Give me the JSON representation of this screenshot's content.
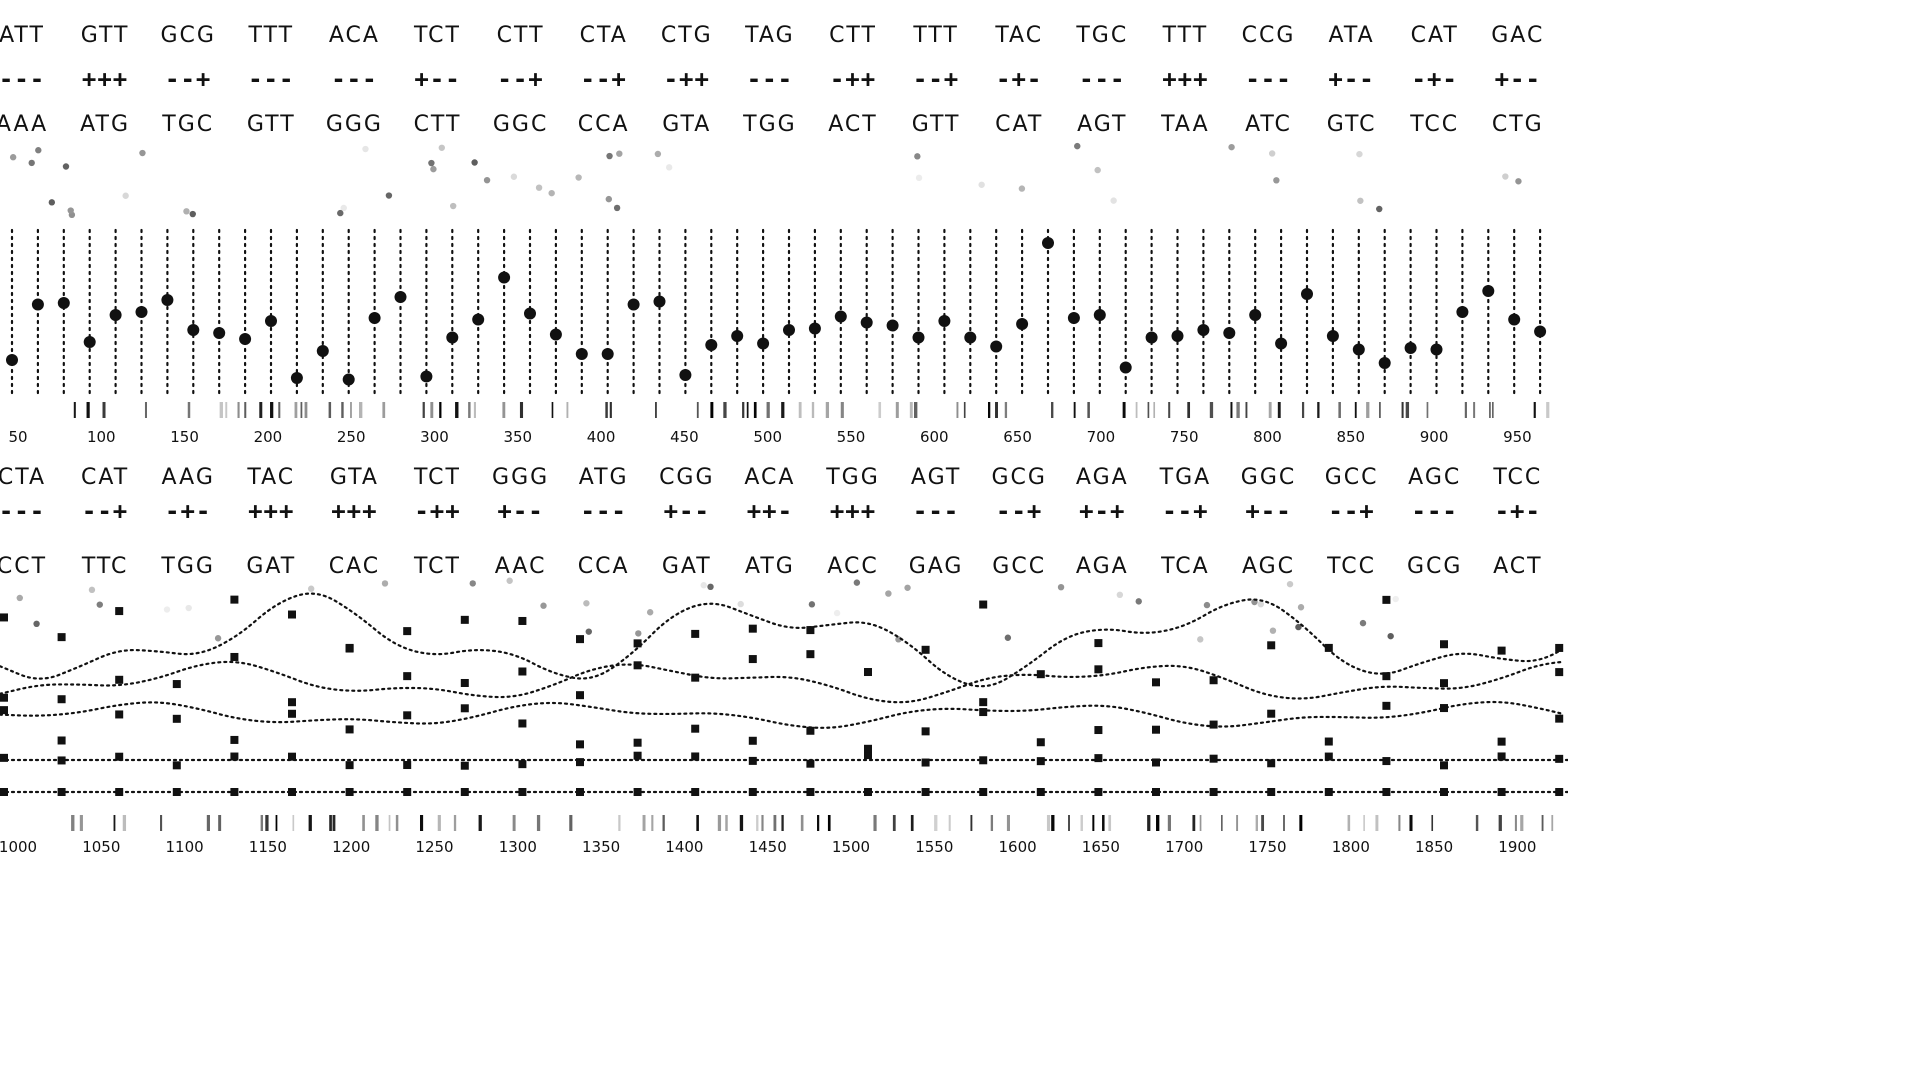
{
  "panel1": {
    "codons_top": [
      "ATT",
      "GTT",
      "GCG",
      "TTT",
      "ACA",
      "TCT",
      "CTT",
      "CTA",
      "CTG",
      "TAG",
      "CTT",
      "TTT",
      "TAC",
      "TGC",
      "TTT",
      "CCG",
      "ATA",
      "CAT",
      "GAC"
    ],
    "signs": [
      "---",
      "+++",
      "--+",
      "---",
      "---",
      "+--",
      "--+",
      "--+",
      "-++",
      "---",
      "-++",
      "--+",
      "-+-",
      "---",
      "+++",
      "---",
      "+--",
      "-+-",
      "+--"
    ],
    "codons_bottom": [
      "AAA",
      "ATG",
      "TGC",
      "GTT",
      "GGG",
      "CTT",
      "GGC",
      "CCA",
      "GTA",
      "TGG",
      "ACT",
      "GTT",
      "CAT",
      "AGT",
      "TAA",
      "ATC",
      "GTC",
      "TCC",
      "CTG"
    ],
    "axis_ticks": [
      "50",
      "100",
      "150",
      "200",
      "250",
      "300",
      "350",
      "400",
      "450",
      "500",
      "550",
      "600",
      "650",
      "700",
      "750",
      "800",
      "850",
      "900",
      "950"
    ],
    "levels": [
      0.18,
      0.55,
      0.56,
      0.3,
      0.48,
      0.5,
      0.58,
      0.38,
      0.36,
      0.32,
      0.44,
      0.06,
      0.24,
      0.05,
      0.46,
      0.6,
      0.07,
      0.33,
      0.45,
      0.73,
      0.49,
      0.35,
      0.22,
      0.22,
      0.55,
      0.57,
      0.08,
      0.28,
      0.34,
      0.29,
      0.38,
      0.39,
      0.47,
      0.43,
      0.41,
      0.33,
      0.44,
      0.33,
      0.27,
      0.42,
      0.96,
      0.46,
      0.48,
      0.13,
      0.33,
      0.34,
      0.38,
      0.36,
      0.48,
      0.29,
      0.62,
      0.34,
      0.25,
      0.16,
      0.26,
      0.25,
      0.5,
      0.64,
      0.45,
      0.37
    ]
  },
  "panel2": {
    "codons_top": [
      "CTA",
      "CAT",
      "AAG",
      "TAC",
      "GTA",
      "TCT",
      "GGG",
      "ATG",
      "CGG",
      "ACA",
      "TGG",
      "AGT",
      "GCG",
      "AGA",
      "TGA",
      "GGC",
      "GCC",
      "AGC",
      "TCC"
    ],
    "signs": [
      "---",
      "--+",
      "-+-",
      "+++",
      "+++",
      "-++",
      "+--",
      "---",
      "+--",
      "++-",
      "+++",
      "---",
      "--+",
      "+-+",
      "--+",
      "+--",
      "--+",
      "---",
      "-+-"
    ],
    "codons_bottom": [
      "CCT",
      "TTC",
      "TGG",
      "GAT",
      "CAC",
      "TCT",
      "AAC",
      "CCA",
      "GAT",
      "ATG",
      "ACC",
      "GAG",
      "GCC",
      "AGA",
      "TCA",
      "AGC",
      "TCC",
      "GCG",
      "ACT"
    ],
    "axis_ticks": [
      "1000",
      "1050",
      "1100",
      "1150",
      "1200",
      "1250",
      "1300",
      "1350",
      "1400",
      "1450",
      "1500",
      "1550",
      "1600",
      "1650",
      "1700",
      "1750",
      "1800",
      "1850",
      "1900"
    ]
  },
  "colors": {
    "ink": "#111111",
    "faint": "#bdbdbd",
    "mid": "#777777"
  }
}
